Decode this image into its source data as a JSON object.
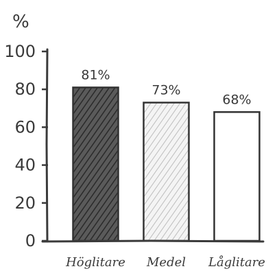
{
  "chart_data": {
    "type": "bar",
    "unit_label": "%",
    "categories": [
      "Höglitare",
      "Medel",
      "Låglitare"
    ],
    "values": [
      81,
      73,
      68
    ],
    "data_labels": [
      "81%",
      "73%",
      "68%"
    ],
    "yticks": [
      0,
      20,
      40,
      60,
      80,
      100
    ],
    "ylim": [
      0,
      100
    ],
    "grid": false,
    "legend": "none",
    "bar_styles": [
      "dark-hatched",
      "light-hatched",
      "white"
    ],
    "colors": {
      "axis": "#3a3a3a",
      "dark_fill": "#555555",
      "light_fill": "#e0e0e0",
      "outline": "#333333"
    }
  }
}
